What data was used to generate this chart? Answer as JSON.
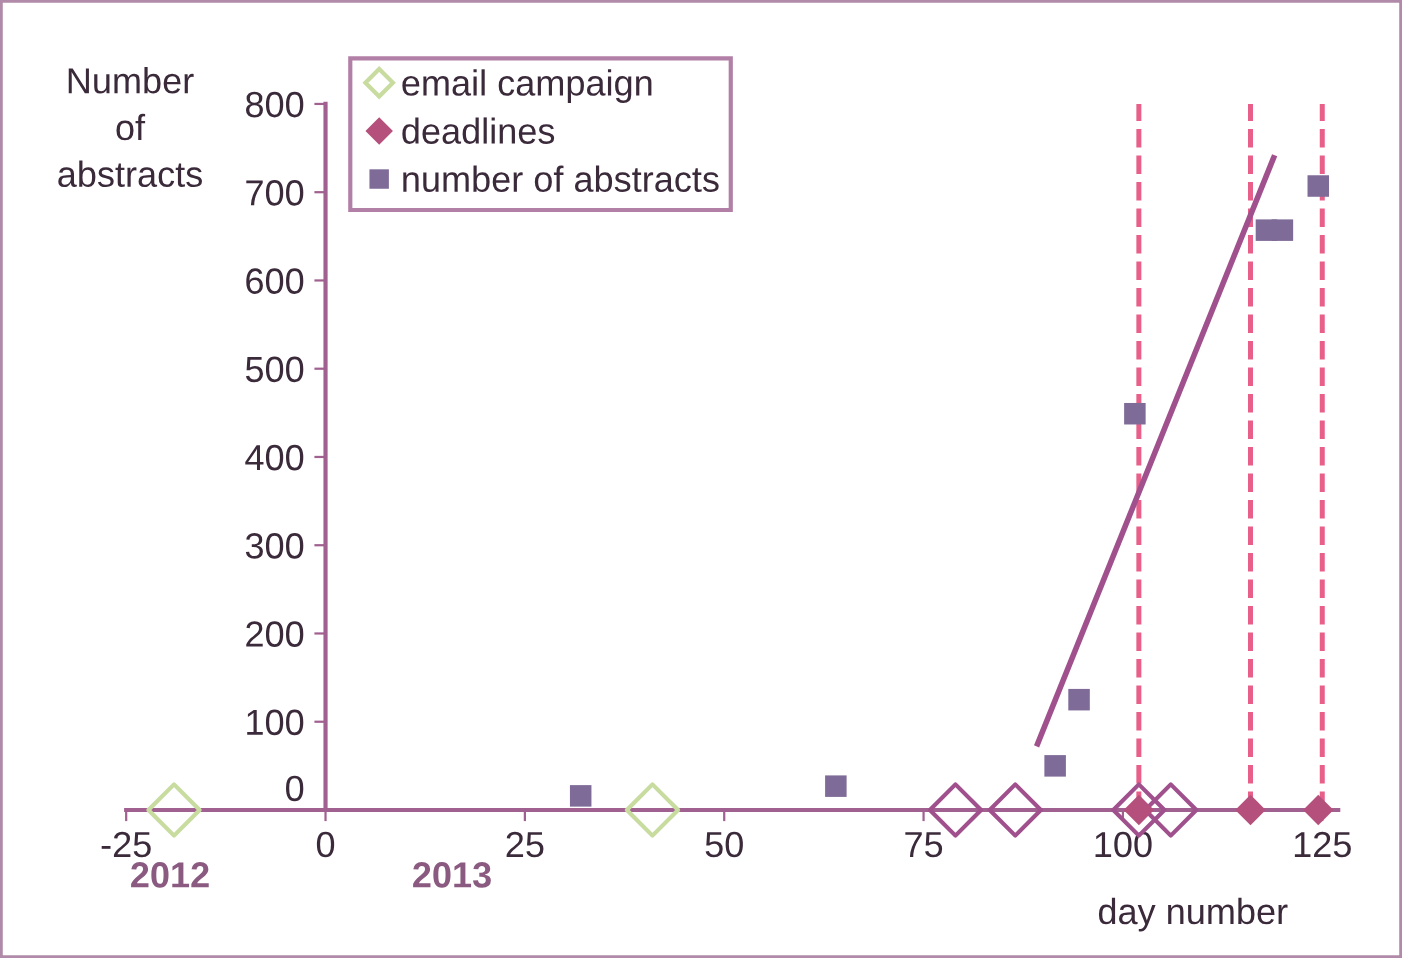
{
  "chart_data": {
    "type": "scatter",
    "ylabel": "Number\nof\nabstracts",
    "xlabel": "day number",
    "xlim": [
      -25,
      127
    ],
    "xticks": [
      -25,
      0,
      25,
      50,
      75,
      100,
      125
    ],
    "ylim": [
      0,
      800
    ],
    "yticks": [
      0,
      100,
      200,
      300,
      400,
      500,
      600,
      700,
      800
    ],
    "grid": false,
    "legend": "top left",
    "series": [
      {
        "name": "email campaign",
        "marker": "diamond",
        "x": [
          -19,
          41,
          79,
          86.5,
          102,
          106
        ],
        "values": [
          0,
          0,
          0,
          0,
          0,
          0
        ],
        "colors": [
          "#c8dca0",
          "#c8dca0",
          "#a0508c",
          "#a0508c",
          "#a0508c",
          "#a0508c"
        ],
        "color": "#c8dca0"
      },
      {
        "name": "deadlines",
        "marker": "diamond",
        "color": "#b5507c",
        "x": [
          102,
          116,
          124.5
        ],
        "values": [
          0,
          0,
          0
        ]
      },
      {
        "name": "number of abstracts",
        "marker": "square",
        "color": "#7f6b98",
        "x": [
          32,
          64,
          91.5,
          94.5,
          101.5,
          118,
          120,
          124.5
        ],
        "values": [
          16,
          27,
          50,
          125,
          449,
          657,
          657,
          707
        ]
      },
      {
        "type": "line",
        "marker": "none",
        "line_style": "solid",
        "color": "#a0508c",
        "x": [
          89.3,
          118.9
        ],
        "values": [
          75,
          739
        ]
      }
    ],
    "ref_lines": [
      {
        "axis": "x",
        "value": 102,
        "color": "#e8608a",
        "line_style": "dashed"
      },
      {
        "axis": "x",
        "value": 116,
        "color": "#e8608a",
        "line_style": "dashed"
      },
      {
        "axis": "x",
        "value": 125,
        "color": "#e8608a",
        "line_style": "dashed"
      }
    ],
    "annotations": [
      "2012",
      "2013"
    ]
  }
}
